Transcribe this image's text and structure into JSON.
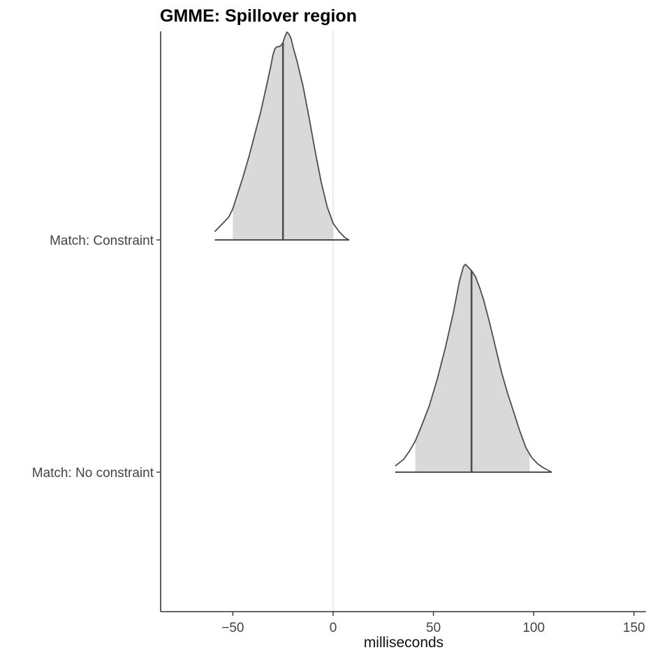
{
  "chart_data": {
    "type": "density_ridge",
    "title": "GMME: Spillover region",
    "xlabel": "milliseconds",
    "ylabel": "",
    "xlim": [
      -86,
      156
    ],
    "x_ticks": [
      -50,
      0,
      50,
      100,
      150
    ],
    "x_tick_labels": [
      "−50",
      "0",
      "50",
      "100",
      "150"
    ],
    "reference_line_x": 0,
    "categories": [
      "Match: Constraint",
      "Match: No constraint"
    ],
    "series": [
      {
        "name": "Match: Constraint",
        "median": -25,
        "interval_shaded": [
          -50,
          0
        ],
        "interval_line": [
          -59,
          8
        ],
        "density": {
          "x": [
            -59,
            -55,
            -52,
            -50,
            -48,
            -45,
            -42,
            -39,
            -36,
            -33,
            -31,
            -30,
            -29,
            -28,
            -27,
            -26,
            -25,
            -24,
            -23,
            -22,
            -21,
            -20,
            -18,
            -15,
            -12,
            -9,
            -6,
            -3,
            0,
            3,
            6,
            8
          ],
          "y": [
            0.04,
            0.08,
            0.11,
            0.15,
            0.21,
            0.3,
            0.4,
            0.51,
            0.62,
            0.75,
            0.84,
            0.89,
            0.92,
            0.93,
            0.93,
            0.935,
            0.95,
            0.98,
            1.0,
            0.99,
            0.97,
            0.93,
            0.86,
            0.74,
            0.59,
            0.43,
            0.28,
            0.16,
            0.08,
            0.04,
            0.01,
            0.0
          ]
        }
      },
      {
        "name": "Match: No constraint",
        "median": 69,
        "interval_shaded": [
          41,
          98
        ],
        "interval_line": [
          31,
          109
        ],
        "density": {
          "x": [
            31,
            35,
            38,
            41,
            44,
            48,
            52,
            56,
            60,
            63,
            65,
            66,
            67,
            69,
            71,
            73,
            75,
            78,
            81,
            84,
            87,
            90,
            93,
            96,
            99,
            102,
            105,
            109
          ],
          "y": [
            0.03,
            0.06,
            0.1,
            0.15,
            0.22,
            0.32,
            0.45,
            0.6,
            0.77,
            0.92,
            0.99,
            1.0,
            0.99,
            0.97,
            0.94,
            0.89,
            0.83,
            0.72,
            0.6,
            0.48,
            0.38,
            0.29,
            0.2,
            0.12,
            0.07,
            0.04,
            0.02,
            0.0
          ]
        }
      }
    ],
    "grid": false,
    "legend": "none",
    "colors": {
      "fill": "#d9d9d9",
      "outline": "#4d4d4d",
      "median_line": "#4d4d4d",
      "reference_line": "#e3e3e3",
      "axis": "#333333"
    }
  }
}
